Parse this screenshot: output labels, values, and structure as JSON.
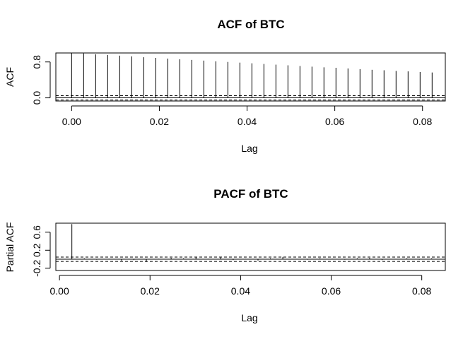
{
  "chart_data": [
    {
      "type": "bar",
      "title": "ACF of BTC",
      "xlabel": "Lag",
      "ylabel": "ACF",
      "xlim": [
        -0.0036,
        0.0852
      ],
      "ylim": [
        -0.07,
        1.0
      ],
      "x_ticks": [
        "0.00",
        "0.02",
        "0.04",
        "0.06",
        "0.08"
      ],
      "y_ticks": [
        "0.0",
        "0.8"
      ],
      "confidence_bound": 0.048,
      "x": [
        0.0,
        0.00274,
        0.00548,
        0.00822,
        0.01096,
        0.0137,
        0.01644,
        0.01918,
        0.02192,
        0.02466,
        0.0274,
        0.03014,
        0.03288,
        0.03562,
        0.03836,
        0.0411,
        0.04384,
        0.04658,
        0.04932,
        0.05206,
        0.0548,
        0.05753,
        0.06027,
        0.06301,
        0.06575,
        0.06849,
        0.07123,
        0.07397,
        0.07671,
        0.07945,
        0.08219
      ],
      "values": [
        1.0,
        0.99,
        0.97,
        0.955,
        0.94,
        0.925,
        0.905,
        0.89,
        0.875,
        0.86,
        0.845,
        0.83,
        0.815,
        0.8,
        0.785,
        0.77,
        0.755,
        0.74,
        0.725,
        0.71,
        0.695,
        0.68,
        0.67,
        0.655,
        0.64,
        0.625,
        0.615,
        0.6,
        0.59,
        0.575,
        0.565
      ]
    },
    {
      "type": "bar",
      "title": "PACF of BTC",
      "xlabel": "Lag",
      "ylabel": "Partial ACF",
      "xlim": [
        -0.0008,
        0.0852
      ],
      "ylim": [
        -0.25,
        0.8
      ],
      "x_ticks": [
        "0.00",
        "0.02",
        "0.04",
        "0.06",
        "0.08"
      ],
      "y_ticks": [
        "-0.2",
        "0.2",
        "0.6"
      ],
      "confidence_bound": 0.048,
      "x": [
        0.00274,
        0.00548,
        0.00822,
        0.01096,
        0.0137,
        0.01644,
        0.01918,
        0.02192,
        0.02466,
        0.0274,
        0.03014,
        0.03288,
        0.03562,
        0.03836,
        0.0411,
        0.04384,
        0.04658,
        0.04932,
        0.05206,
        0.0548,
        0.05753,
        0.06027,
        0.06301,
        0.06575,
        0.06849,
        0.07123,
        0.07397,
        0.07671,
        0.07945,
        0.08219
      ],
      "values": [
        0.78,
        0.02,
        -0.01,
        0.01,
        -0.03,
        -0.02,
        -0.06,
        0.01,
        0.03,
        0.02,
        0.04,
        0.01,
        0.04,
        -0.02,
        0.01,
        -0.03,
        0.02,
        0.05,
        0.01,
        -0.01,
        0.02,
        0.01,
        -0.01,
        0.02,
        0.03,
        -0.02,
        0.01,
        0.02,
        -0.01,
        0.02
      ]
    }
  ]
}
